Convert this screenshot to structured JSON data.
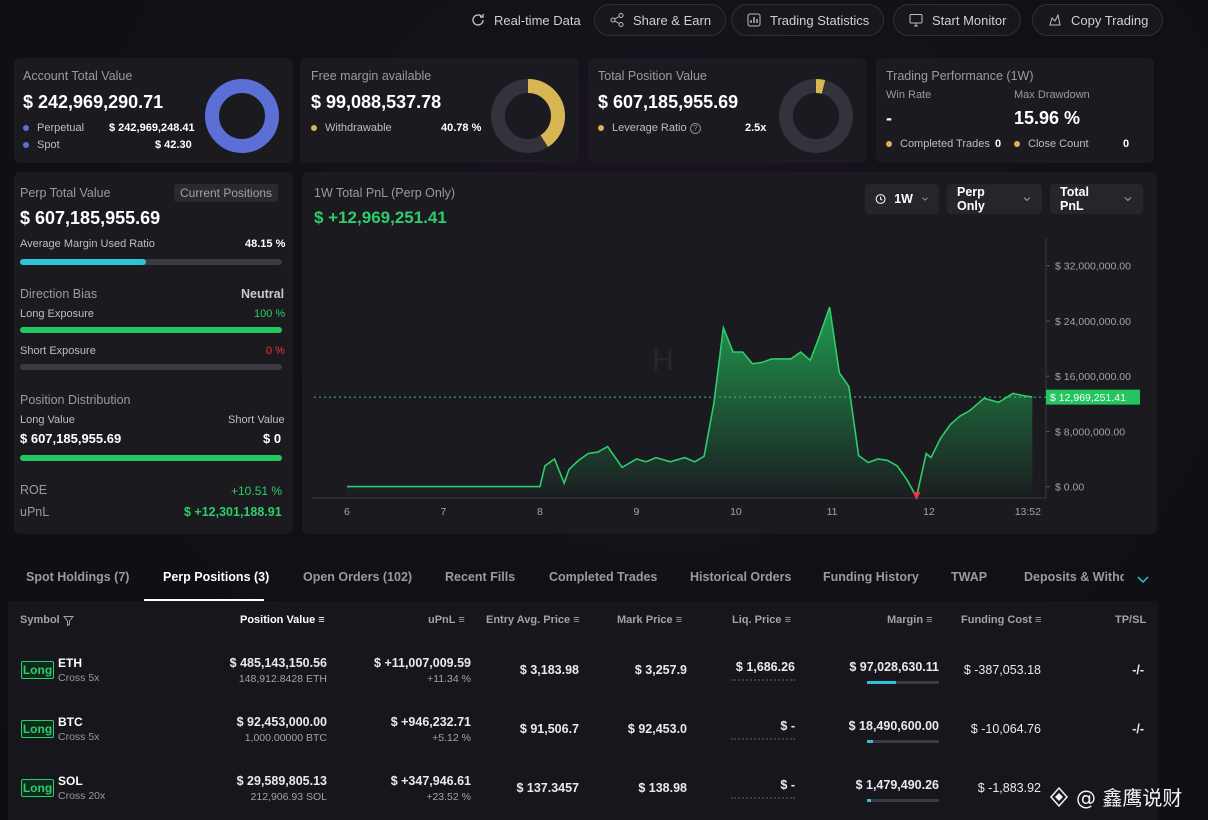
{
  "topbar": {
    "realtime": "Real-time Data",
    "share": "Share & Earn",
    "stats": "Trading Statistics",
    "monitor": "Start Monitor",
    "copy": "Copy Trading"
  },
  "summary": {
    "account": {
      "label": "Account Total Value",
      "value": "$ 242,969,290.71",
      "perp_label": "Perpetual",
      "perp_value": "$ 242,969,248.41",
      "spot_label": "Spot",
      "spot_value": "$ 42.30",
      "donut_color": "#5b6fd6"
    },
    "margin": {
      "label": "Free margin available",
      "value": "$ 99,088,537.78",
      "withdrawable_label": "Withdrawable",
      "withdrawable_value": "40.78 %",
      "donut_fraction": 0.4078,
      "donut_color": "#d9b654"
    },
    "position": {
      "label": "Total Position Value",
      "value": "$ 607,185,955.69",
      "leverage_label": "Leverage Ratio",
      "leverage_value": "2.5x",
      "donut_fraction": 0.04,
      "donut_color": "#d9b654"
    },
    "performance": {
      "label": "Trading Performance (1W)",
      "winrate_label": "Win Rate",
      "winrate_value": "-",
      "drawdown_label": "Max Drawdown",
      "drawdown_value": "15.96 %",
      "completed_label": "Completed Trades",
      "completed_value": "0",
      "close_label": "Close Count",
      "close_value": "0"
    }
  },
  "perp": {
    "label": "Perp Total Value",
    "tag": "Current Positions",
    "value": "$ 607,185,955.69",
    "margin_ratio_label": "Average Margin Used Ratio",
    "margin_ratio_value": "48.15 %",
    "margin_ratio_fraction": 0.4815,
    "bias_label": "Direction Bias",
    "bias_value": "Neutral",
    "long_exp_label": "Long Exposure",
    "long_exp_value": "100 %",
    "long_exp_fraction": 1.0,
    "short_exp_label": "Short Exposure",
    "short_exp_value": "0 %",
    "short_exp_fraction": 0.0,
    "dist_label": "Position Distribution",
    "long_value_label": "Long Value",
    "short_value_label": "Short Value",
    "long_value": "$ 607,185,955.69",
    "short_value": "$ 0",
    "long_fraction": 1.0,
    "roe_label": "ROE",
    "roe_value": "+10.51 %",
    "upnl_label": "uPnL",
    "upnl_value": "$ +12,301,188.91"
  },
  "chart": {
    "title": "1W Total PnL (Perp Only)",
    "value": "$ +12,969,251.41",
    "sel_period": "1W",
    "sel_scope": "Perp Only",
    "sel_metric": "Total PnL",
    "current_label": "$ 12,969,251.41",
    "watermark": "H"
  },
  "chart_data": {
    "type": "area",
    "x_ticks": [
      "6",
      "7",
      "8",
      "9",
      "10",
      "11",
      "12",
      "13:52"
    ],
    "y_ticks": [
      "$ 32,000,000.00",
      "$ 24,000,000.00",
      "$ 16,000,000.00",
      "$ 8,000,000.00",
      "$ 0.00"
    ],
    "ylim": [
      -1500000,
      35000000
    ],
    "current": 12969251.41,
    "series": [
      {
        "x": [
          6.0,
          6.5,
          7.0,
          7.5,
          8.0,
          8.05,
          8.15,
          8.25,
          8.3,
          8.4,
          8.5,
          8.6,
          8.7,
          8.85,
          9.0,
          9.1,
          9.2,
          9.35,
          9.5,
          9.6,
          9.7,
          9.8,
          9.9,
          10.0,
          10.1,
          10.2,
          10.3,
          10.4,
          10.5,
          10.6,
          10.7,
          10.8,
          10.9,
          11.0,
          11.1,
          11.2,
          11.3,
          11.4,
          11.5,
          11.6,
          11.7,
          11.8,
          11.9,
          12.0,
          12.05,
          12.15,
          12.25,
          12.35,
          12.45,
          12.6,
          12.75,
          12.9,
          13.0,
          13.1
        ],
        "y": [
          0,
          0,
          0,
          0,
          0,
          3000000,
          4000000,
          500000,
          2500000,
          3800000,
          4800000,
          5000000,
          5800000,
          2800000,
          4000000,
          3600000,
          4200000,
          3600000,
          4200000,
          3600000,
          4400000,
          12000000,
          23000000,
          19500000,
          19500000,
          17800000,
          18000000,
          18500000,
          18500000,
          18500000,
          19500000,
          18300000,
          22000000,
          26000000,
          16500000,
          14500000,
          4500000,
          3500000,
          4000000,
          3800000,
          3000000,
          1000000,
          -1500000,
          4800000,
          4200000,
          7000000,
          9000000,
          10200000,
          11000000,
          12800000,
          12200000,
          13500000,
          13200000,
          12969251
        ]
      }
    ]
  },
  "tabs": [
    "Spot Holdings (7)",
    "Perp Positions (3)",
    "Open Orders (102)",
    "Recent Fills",
    "Completed Trades",
    "Historical Orders",
    "Funding History",
    "TWAP",
    "Deposits & Withd"
  ],
  "table": {
    "headers": {
      "symbol": "Symbol",
      "pos": "Position Value",
      "upnl": "uPnL",
      "entry": "Entry Avg. Price",
      "mark": "Mark Price",
      "liq": "Liq. Price",
      "margin": "Margin",
      "funding": "Funding Cost",
      "tpsl": "TP/SL"
    },
    "rows": [
      {
        "side": "Long",
        "sym": "ETH",
        "mode": "Cross 5x",
        "pos": "$ 485,143,150.56",
        "qty": "148,912.8428 ETH",
        "upnl": "$ +11,007,009.59",
        "upnl_pct": "+11.34 %",
        "entry": "$ 3,183.98",
        "mark": "$ 3,257.9",
        "liq": "$ 1,686.26",
        "margin": "$ 97,028,630.11",
        "margin_fraction": 0.4,
        "funding": "$ -387,053.18",
        "tpsl": "-/-"
      },
      {
        "side": "Long",
        "sym": "BTC",
        "mode": "Cross 5x",
        "pos": "$ 92,453,000.00",
        "qty": "1,000.00000 BTC",
        "upnl": "$ +946,232.71",
        "upnl_pct": "+5.12 %",
        "entry": "$ 91,506.7",
        "mark": "$ 92,453.0",
        "liq": "$ -",
        "margin": "$ 18,490,600.00",
        "margin_fraction": 0.08,
        "funding": "$ -10,064.76",
        "tpsl": "-/-"
      },
      {
        "side": "Long",
        "sym": "SOL",
        "mode": "Cross 20x",
        "pos": "$ 29,589,805.13",
        "qty": "212,906.93 SOL",
        "upnl": "$ +347,946.61",
        "upnl_pct": "+23.52 %",
        "entry": "$ 137.3457",
        "mark": "$ 138.98",
        "liq": "$ -",
        "margin": "$ 1,479,490.26",
        "margin_fraction": 0.05,
        "funding": "$ -1,883.92",
        "tpsl": ""
      }
    ]
  },
  "watermark_brand": "@ 鑫鹰说财"
}
